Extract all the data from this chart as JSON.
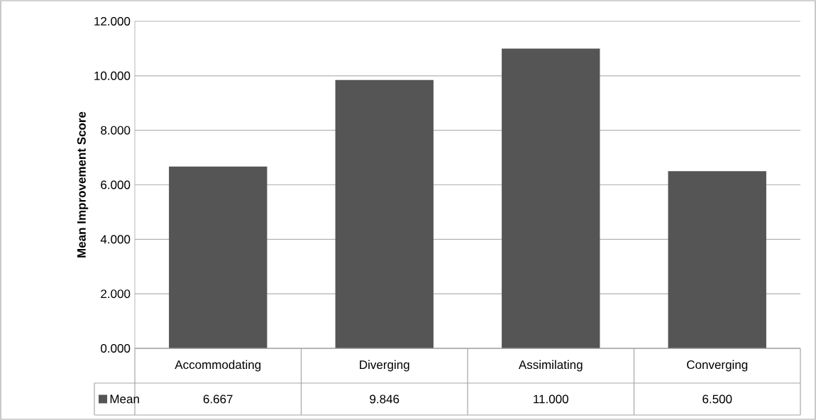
{
  "chart_data": {
    "type": "bar",
    "ylabel": "Mean Improvement Score",
    "categories": [
      "Accommodating",
      "Diverging",
      "Assimilating",
      "Converging"
    ],
    "series": [
      {
        "name": "Mean",
        "color": "#555555",
        "values": [
          6.667,
          9.846,
          11.0,
          6.5
        ],
        "value_labels": [
          "6.667",
          "9.846",
          "11.000",
          "6.500"
        ]
      }
    ],
    "ylim": [
      0,
      12
    ],
    "yticks": [
      {
        "value": 0,
        "label": "0.000"
      },
      {
        "value": 2,
        "label": "2.000"
      },
      {
        "value": 4,
        "label": "4.000"
      },
      {
        "value": 6,
        "label": "6.000"
      },
      {
        "value": 8,
        "label": "8.000"
      },
      {
        "value": 10,
        "label": "10.000"
      },
      {
        "value": 12,
        "label": "12.000"
      }
    ],
    "grid": "y"
  }
}
